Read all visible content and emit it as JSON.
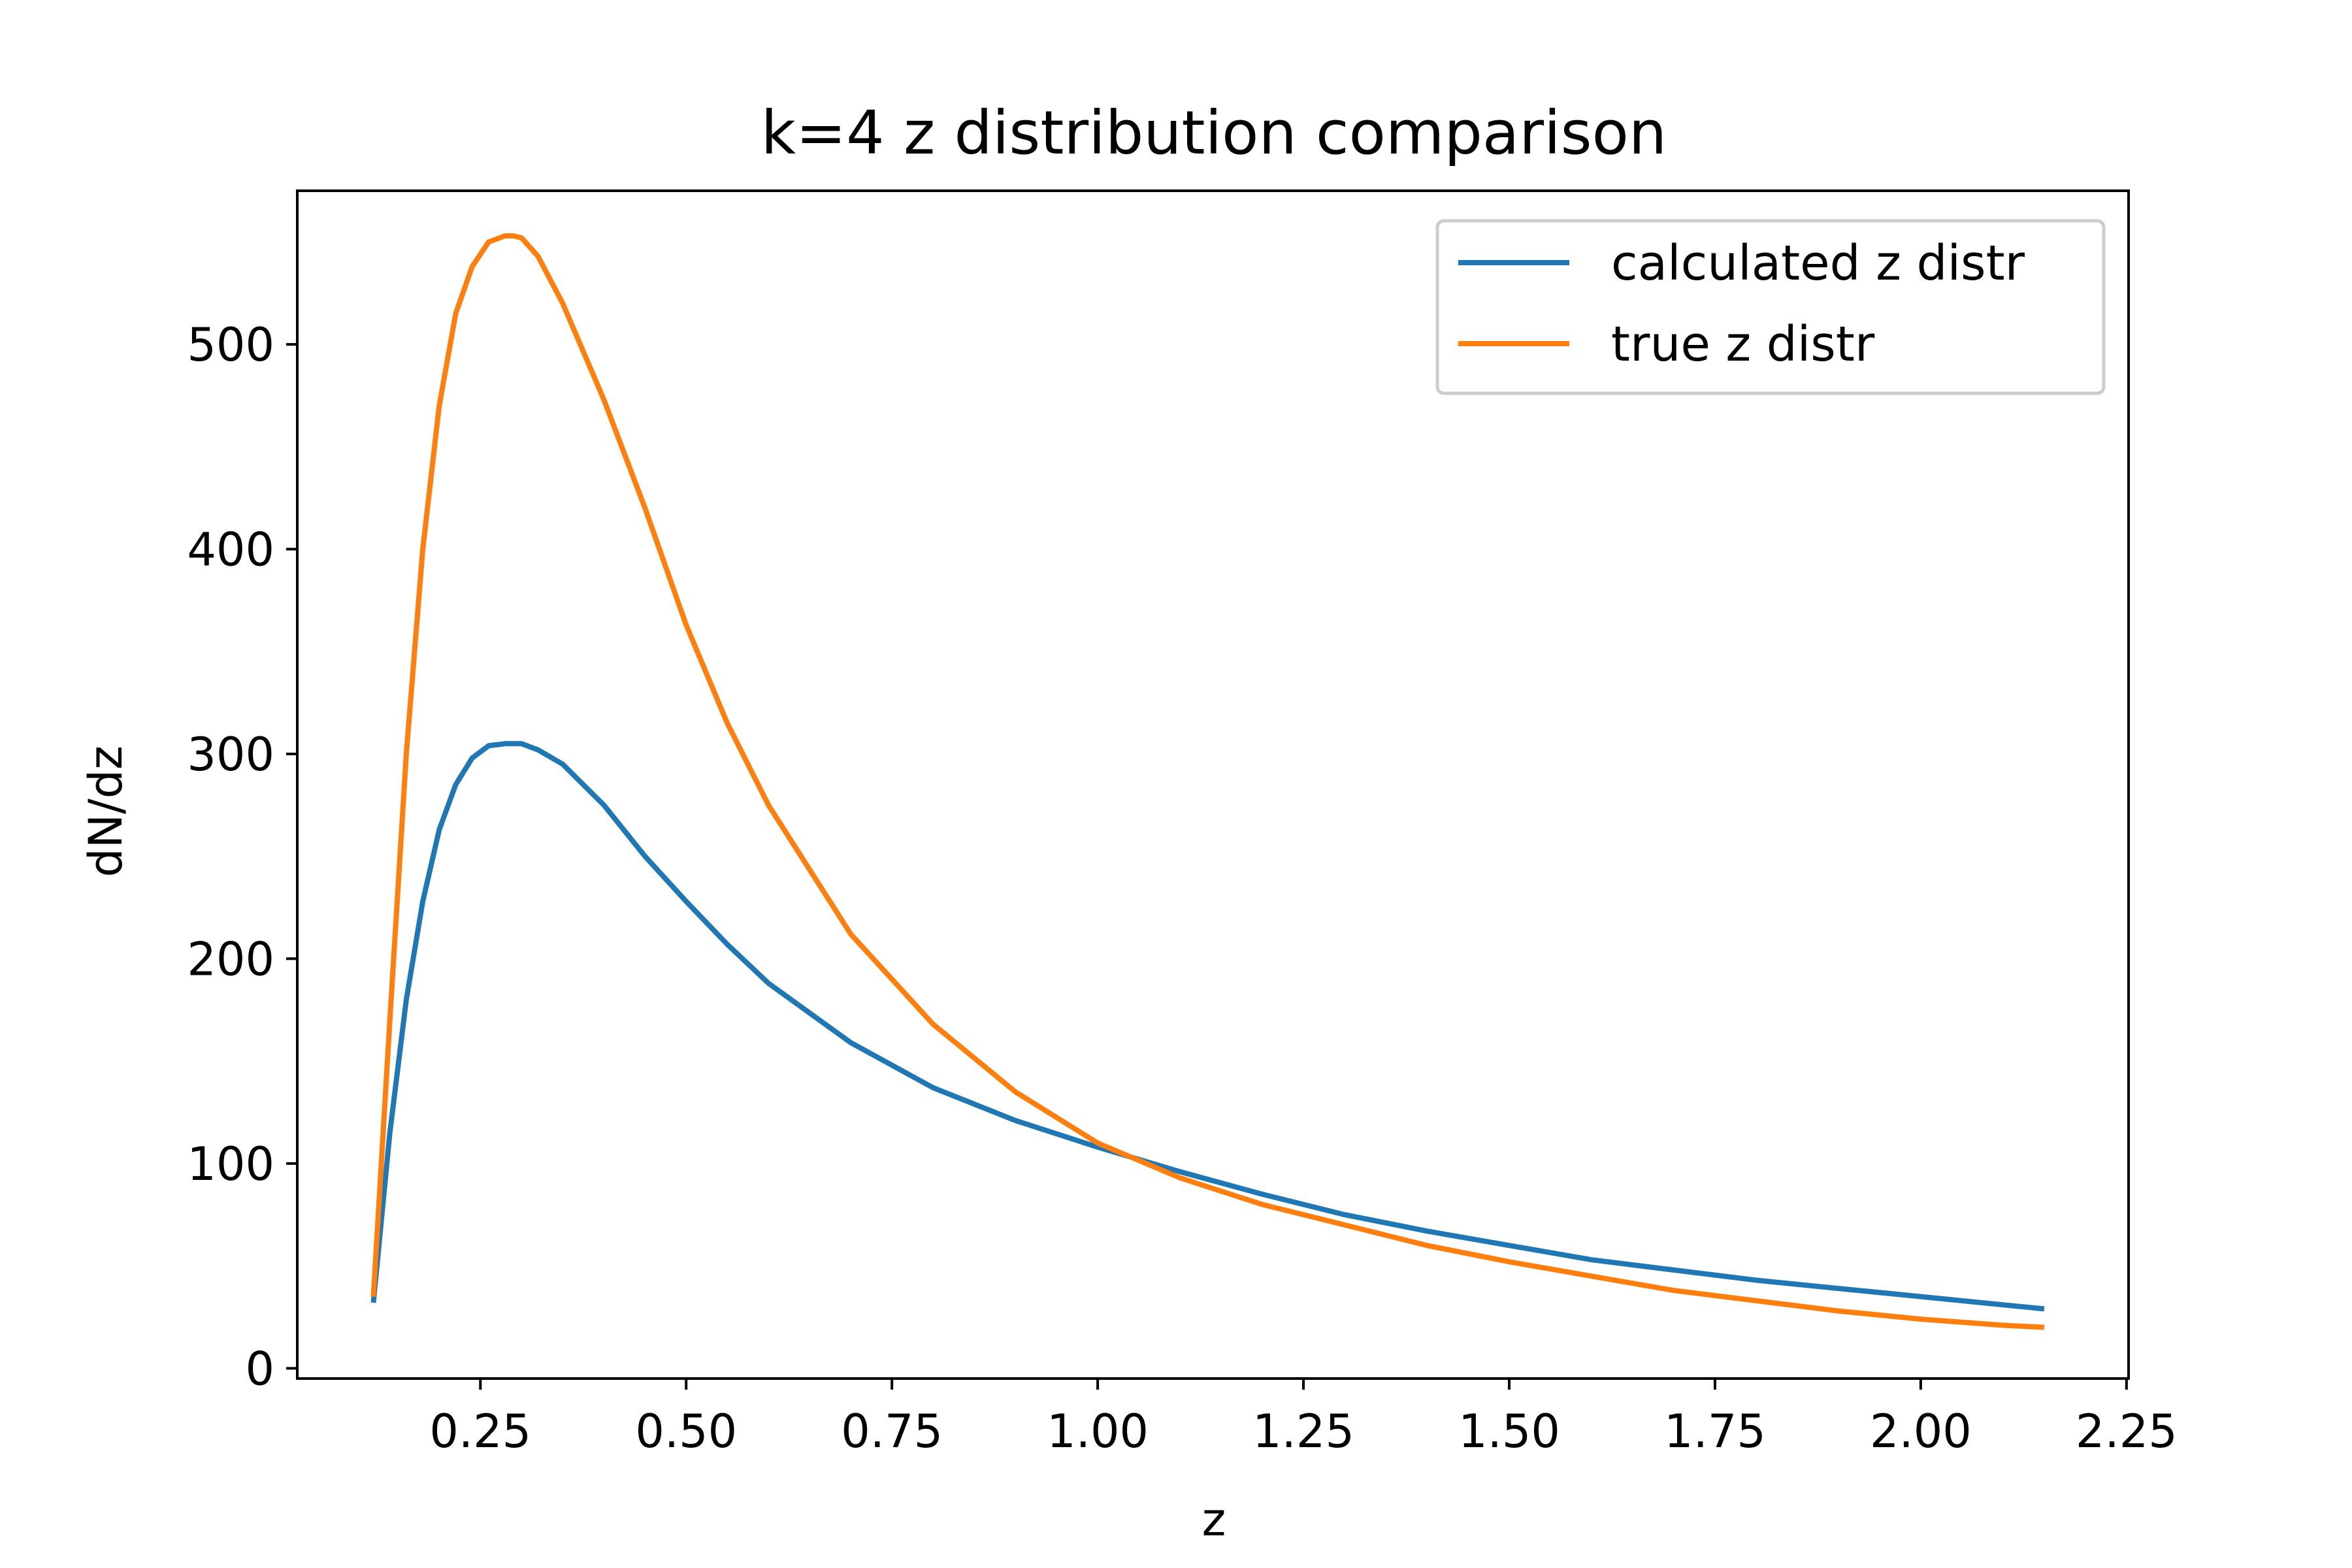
{
  "chart_data": {
    "type": "line",
    "title": "k=4 z distribution comparison",
    "xlabel": "z",
    "ylabel": "dN/dz",
    "xlim": [
      0.0275,
      2.2525
    ],
    "ylim": [
      -5,
      575
    ],
    "x_ticks": [
      "0.25",
      "0.50",
      "0.75",
      "1.00",
      "1.25",
      "1.50",
      "1.75",
      "2.00",
      "2.25"
    ],
    "y_ticks": [
      "0",
      "100",
      "200",
      "300",
      "400",
      "500"
    ],
    "grid": false,
    "legend_position": "upper-right",
    "colors": {
      "calculated": "#1f77b4",
      "true": "#ff7f0e",
      "axes": "#000000",
      "legend_border": "#cccccc"
    },
    "series": [
      {
        "name": "calculated z distr",
        "color": "#1f77b4",
        "x": [
          0.12,
          0.14,
          0.16,
          0.18,
          0.2,
          0.22,
          0.24,
          0.26,
          0.28,
          0.3,
          0.32,
          0.35,
          0.4,
          0.45,
          0.5,
          0.55,
          0.6,
          0.7,
          0.8,
          0.9,
          1.0,
          1.1,
          1.2,
          1.3,
          1.4,
          1.5,
          1.6,
          1.7,
          1.8,
          1.9,
          2.0,
          2.1,
          2.15
        ],
        "y": [
          32,
          115,
          180,
          228,
          263,
          285,
          298,
          304,
          305,
          305,
          302,
          295,
          275,
          250,
          228,
          207,
          188,
          159,
          137,
          121,
          108,
          96,
          85,
          75,
          67,
          60,
          53,
          48,
          43,
          39,
          35,
          31,
          29
        ]
      },
      {
        "name": "true z distr",
        "color": "#ff7f0e",
        "x": [
          0.12,
          0.14,
          0.16,
          0.18,
          0.2,
          0.22,
          0.24,
          0.26,
          0.28,
          0.29,
          0.3,
          0.32,
          0.35,
          0.4,
          0.45,
          0.5,
          0.55,
          0.6,
          0.7,
          0.8,
          0.9,
          1.0,
          1.1,
          1.2,
          1.3,
          1.4,
          1.5,
          1.6,
          1.7,
          1.8,
          1.9,
          2.0,
          2.1,
          2.15
        ],
        "y": [
          35,
          170,
          300,
          400,
          470,
          515,
          538,
          550,
          553,
          553,
          552,
          543,
          520,
          473,
          420,
          363,
          315,
          275,
          212,
          168,
          135,
          110,
          93,
          80,
          70,
          60,
          52,
          45,
          38,
          33,
          28,
          24,
          21,
          20
        ]
      }
    ]
  }
}
